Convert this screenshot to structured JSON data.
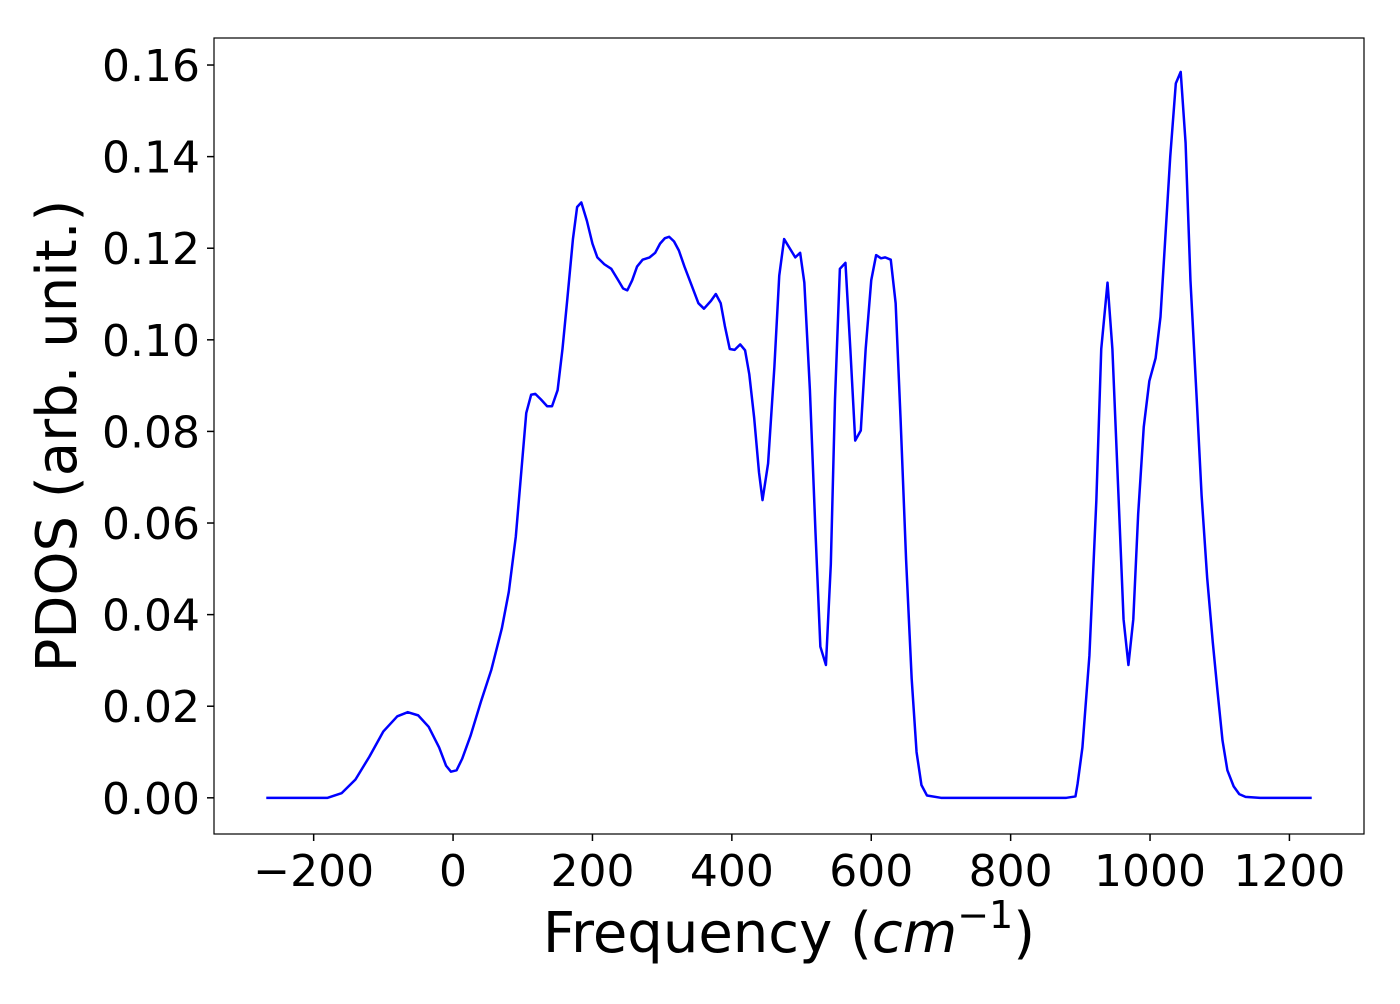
{
  "chart_data": {
    "type": "line",
    "x_label": [
      "Frequency (",
      "cm",
      "−1",
      ")"
    ],
    "y_label": "PDOS (arb. unit.)",
    "xlim": [
      -343,
      1307
    ],
    "ylim": [
      -0.0079,
      0.1659
    ],
    "xticks": [
      {
        "value": -200,
        "label": "−200"
      },
      0,
      200,
      400,
      600,
      800,
      1000,
      1200
    ],
    "yticks": [
      {
        "value": 0,
        "label": "0.00"
      },
      {
        "value": 0.02,
        "label": "0.02"
      },
      {
        "value": 0.04,
        "label": "0.04"
      },
      {
        "value": 0.06,
        "label": "0.06"
      },
      {
        "value": 0.08,
        "label": "0.08"
      },
      {
        "value": 0.1,
        "label": "0.10"
      },
      {
        "value": 0.12,
        "label": "0.12"
      },
      {
        "value": 0.14,
        "label": "0.14"
      },
      {
        "value": 0.16,
        "label": "0.16"
      }
    ],
    "grid": false,
    "series": [
      {
        "name": "PDOS",
        "color": "#0000ff",
        "x": [
          -268,
          -180,
          -160,
          -140,
          -120,
          -100,
          -80,
          -65,
          -50,
          -35,
          -20,
          -10,
          -3,
          5,
          13,
          25,
          40,
          55,
          70,
          80,
          90,
          100,
          105,
          112,
          118,
          126,
          135,
          142,
          150,
          157,
          164,
          172,
          178,
          184,
          192,
          200,
          207,
          217,
          227,
          237,
          244,
          250,
          257,
          264,
          272,
          282,
          290,
          297,
          304,
          310,
          317,
          324,
          332,
          342,
          352,
          360,
          370,
          377,
          384,
          390,
          397,
          404,
          412,
          419,
          425,
          432,
          439,
          444,
          452,
          461,
          468,
          475,
          483,
          491,
          498,
          504,
          512,
          520,
          527,
          535,
          542,
          548,
          555,
          563,
          570,
          577,
          585,
          592,
          600,
          607,
          614,
          620,
          628,
          635,
          642,
          650,
          658,
          665,
          672,
          680,
          700,
          880,
          893,
          896,
          903,
          913,
          923,
          930,
          939,
          946,
          955,
          962,
          969,
          976,
          983,
          991,
          999,
          1008,
          1015,
          1021,
          1029,
          1037,
          1044,
          1051,
          1058,
          1067,
          1074,
          1082,
          1090,
          1097,
          1104,
          1111,
          1120,
          1128,
          1137,
          1158,
          1232
        ],
        "values": [
          0,
          0,
          0.001,
          0.004,
          0.009,
          0.0145,
          0.0178,
          0.0187,
          0.018,
          0.0155,
          0.011,
          0.007,
          0.0057,
          0.006,
          0.0085,
          0.0135,
          0.021,
          0.028,
          0.037,
          0.045,
          0.057,
          0.075,
          0.084,
          0.088,
          0.0882,
          0.087,
          0.0855,
          0.0855,
          0.089,
          0.098,
          0.109,
          0.122,
          0.129,
          0.13,
          0.126,
          0.121,
          0.118,
          0.1165,
          0.1155,
          0.113,
          0.1112,
          0.1108,
          0.113,
          0.116,
          0.1175,
          0.118,
          0.119,
          0.121,
          0.1222,
          0.1225,
          0.1215,
          0.1195,
          0.116,
          0.112,
          0.108,
          0.1068,
          0.1085,
          0.11,
          0.108,
          0.103,
          0.098,
          0.0978,
          0.099,
          0.0977,
          0.0925,
          0.083,
          0.071,
          0.065,
          0.073,
          0.094,
          0.114,
          0.122,
          0.12,
          0.118,
          0.119,
          0.1125,
          0.089,
          0.058,
          0.033,
          0.029,
          0.051,
          0.087,
          0.1155,
          0.1168,
          0.098,
          0.078,
          0.0802,
          0.098,
          0.113,
          0.1185,
          0.1178,
          0.118,
          0.1175,
          0.108,
          0.083,
          0.052,
          0.026,
          0.01,
          0.0028,
          0.0005,
          0,
          0,
          0.0003,
          0.003,
          0.011,
          0.031,
          0.065,
          0.098,
          0.1125,
          0.098,
          0.065,
          0.039,
          0.029,
          0.039,
          0.062,
          0.081,
          0.091,
          0.096,
          0.105,
          0.12,
          0.14,
          0.156,
          0.1585,
          0.143,
          0.113,
          0.087,
          0.066,
          0.048,
          0.034,
          0.023,
          0.0125,
          0.006,
          0.0025,
          0.0008,
          0.0002,
          0,
          0
        ]
      }
    ]
  }
}
